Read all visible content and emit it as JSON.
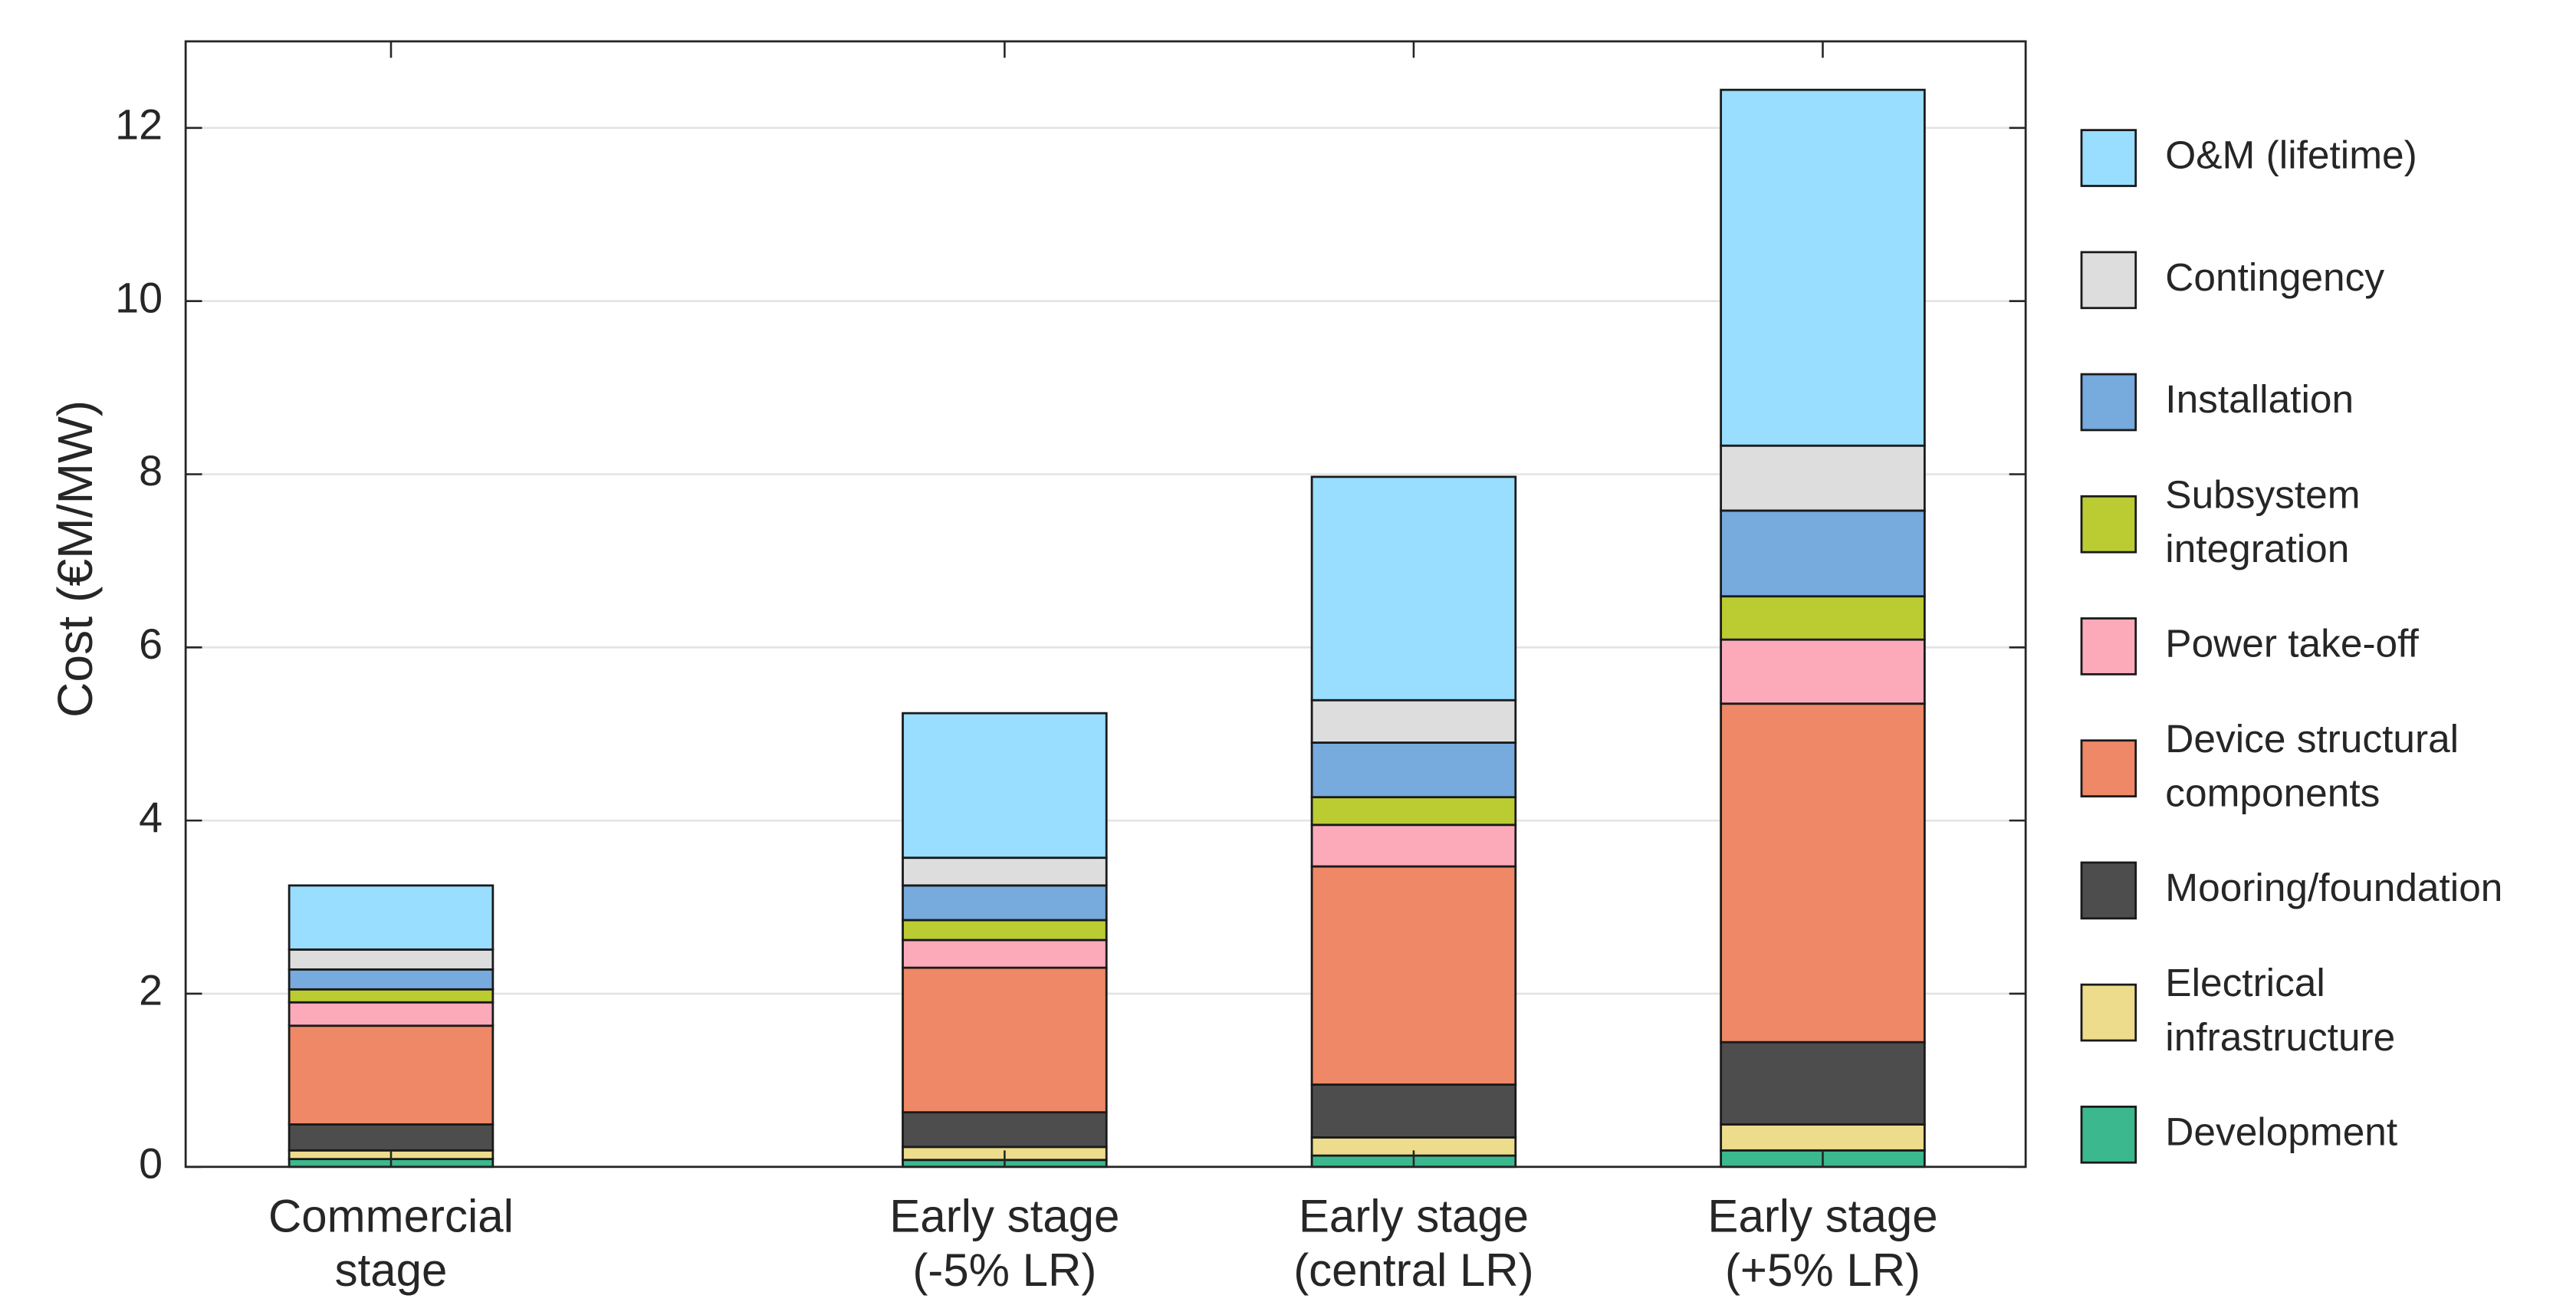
{
  "chart_data": {
    "type": "stacked_bar",
    "ylabel": "Cost (€M/MW)",
    "categories": [
      "Commercial\nstage",
      "Early stage\n(-5% LR)",
      "Early stage\n(central LR)",
      "Early stage\n(+5% LR)"
    ],
    "series": [
      {
        "name": "Development",
        "color": "#3cb88e",
        "values": [
          0.09,
          0.08,
          0.13,
          0.19
        ]
      },
      {
        "name": "Electrical\ninfrastructure",
        "color": "#ecdc8c",
        "values": [
          0.1,
          0.15,
          0.21,
          0.3
        ]
      },
      {
        "name": "Mooring/foundation",
        "color": "#4d4d4d",
        "values": [
          0.3,
          0.4,
          0.61,
          0.95
        ]
      },
      {
        "name": "Device structural\ncomponents",
        "color": "#ee8866",
        "values": [
          1.14,
          1.67,
          2.52,
          3.91
        ]
      },
      {
        "name": "Power take-off",
        "color": "#fcaaba",
        "values": [
          0.27,
          0.32,
          0.48,
          0.74
        ]
      },
      {
        "name": "Subsystem\nintegration",
        "color": "#bbcc33",
        "values": [
          0.15,
          0.23,
          0.32,
          0.5
        ]
      },
      {
        "name": "Installation",
        "color": "#77aadd",
        "values": [
          0.23,
          0.4,
          0.63,
          0.99
        ]
      },
      {
        "name": "Contingency",
        "color": "#dddddd",
        "values": [
          0.23,
          0.32,
          0.49,
          0.75
        ]
      },
      {
        "name": "O&M (lifetime)",
        "color": "#99ddff",
        "values": [
          0.74,
          1.67,
          2.58,
          4.11
        ]
      }
    ],
    "ylim": [
      0,
      13
    ],
    "yticks": [
      0,
      2,
      4,
      6,
      8,
      10,
      12
    ],
    "grid": true,
    "legend": "right"
  }
}
